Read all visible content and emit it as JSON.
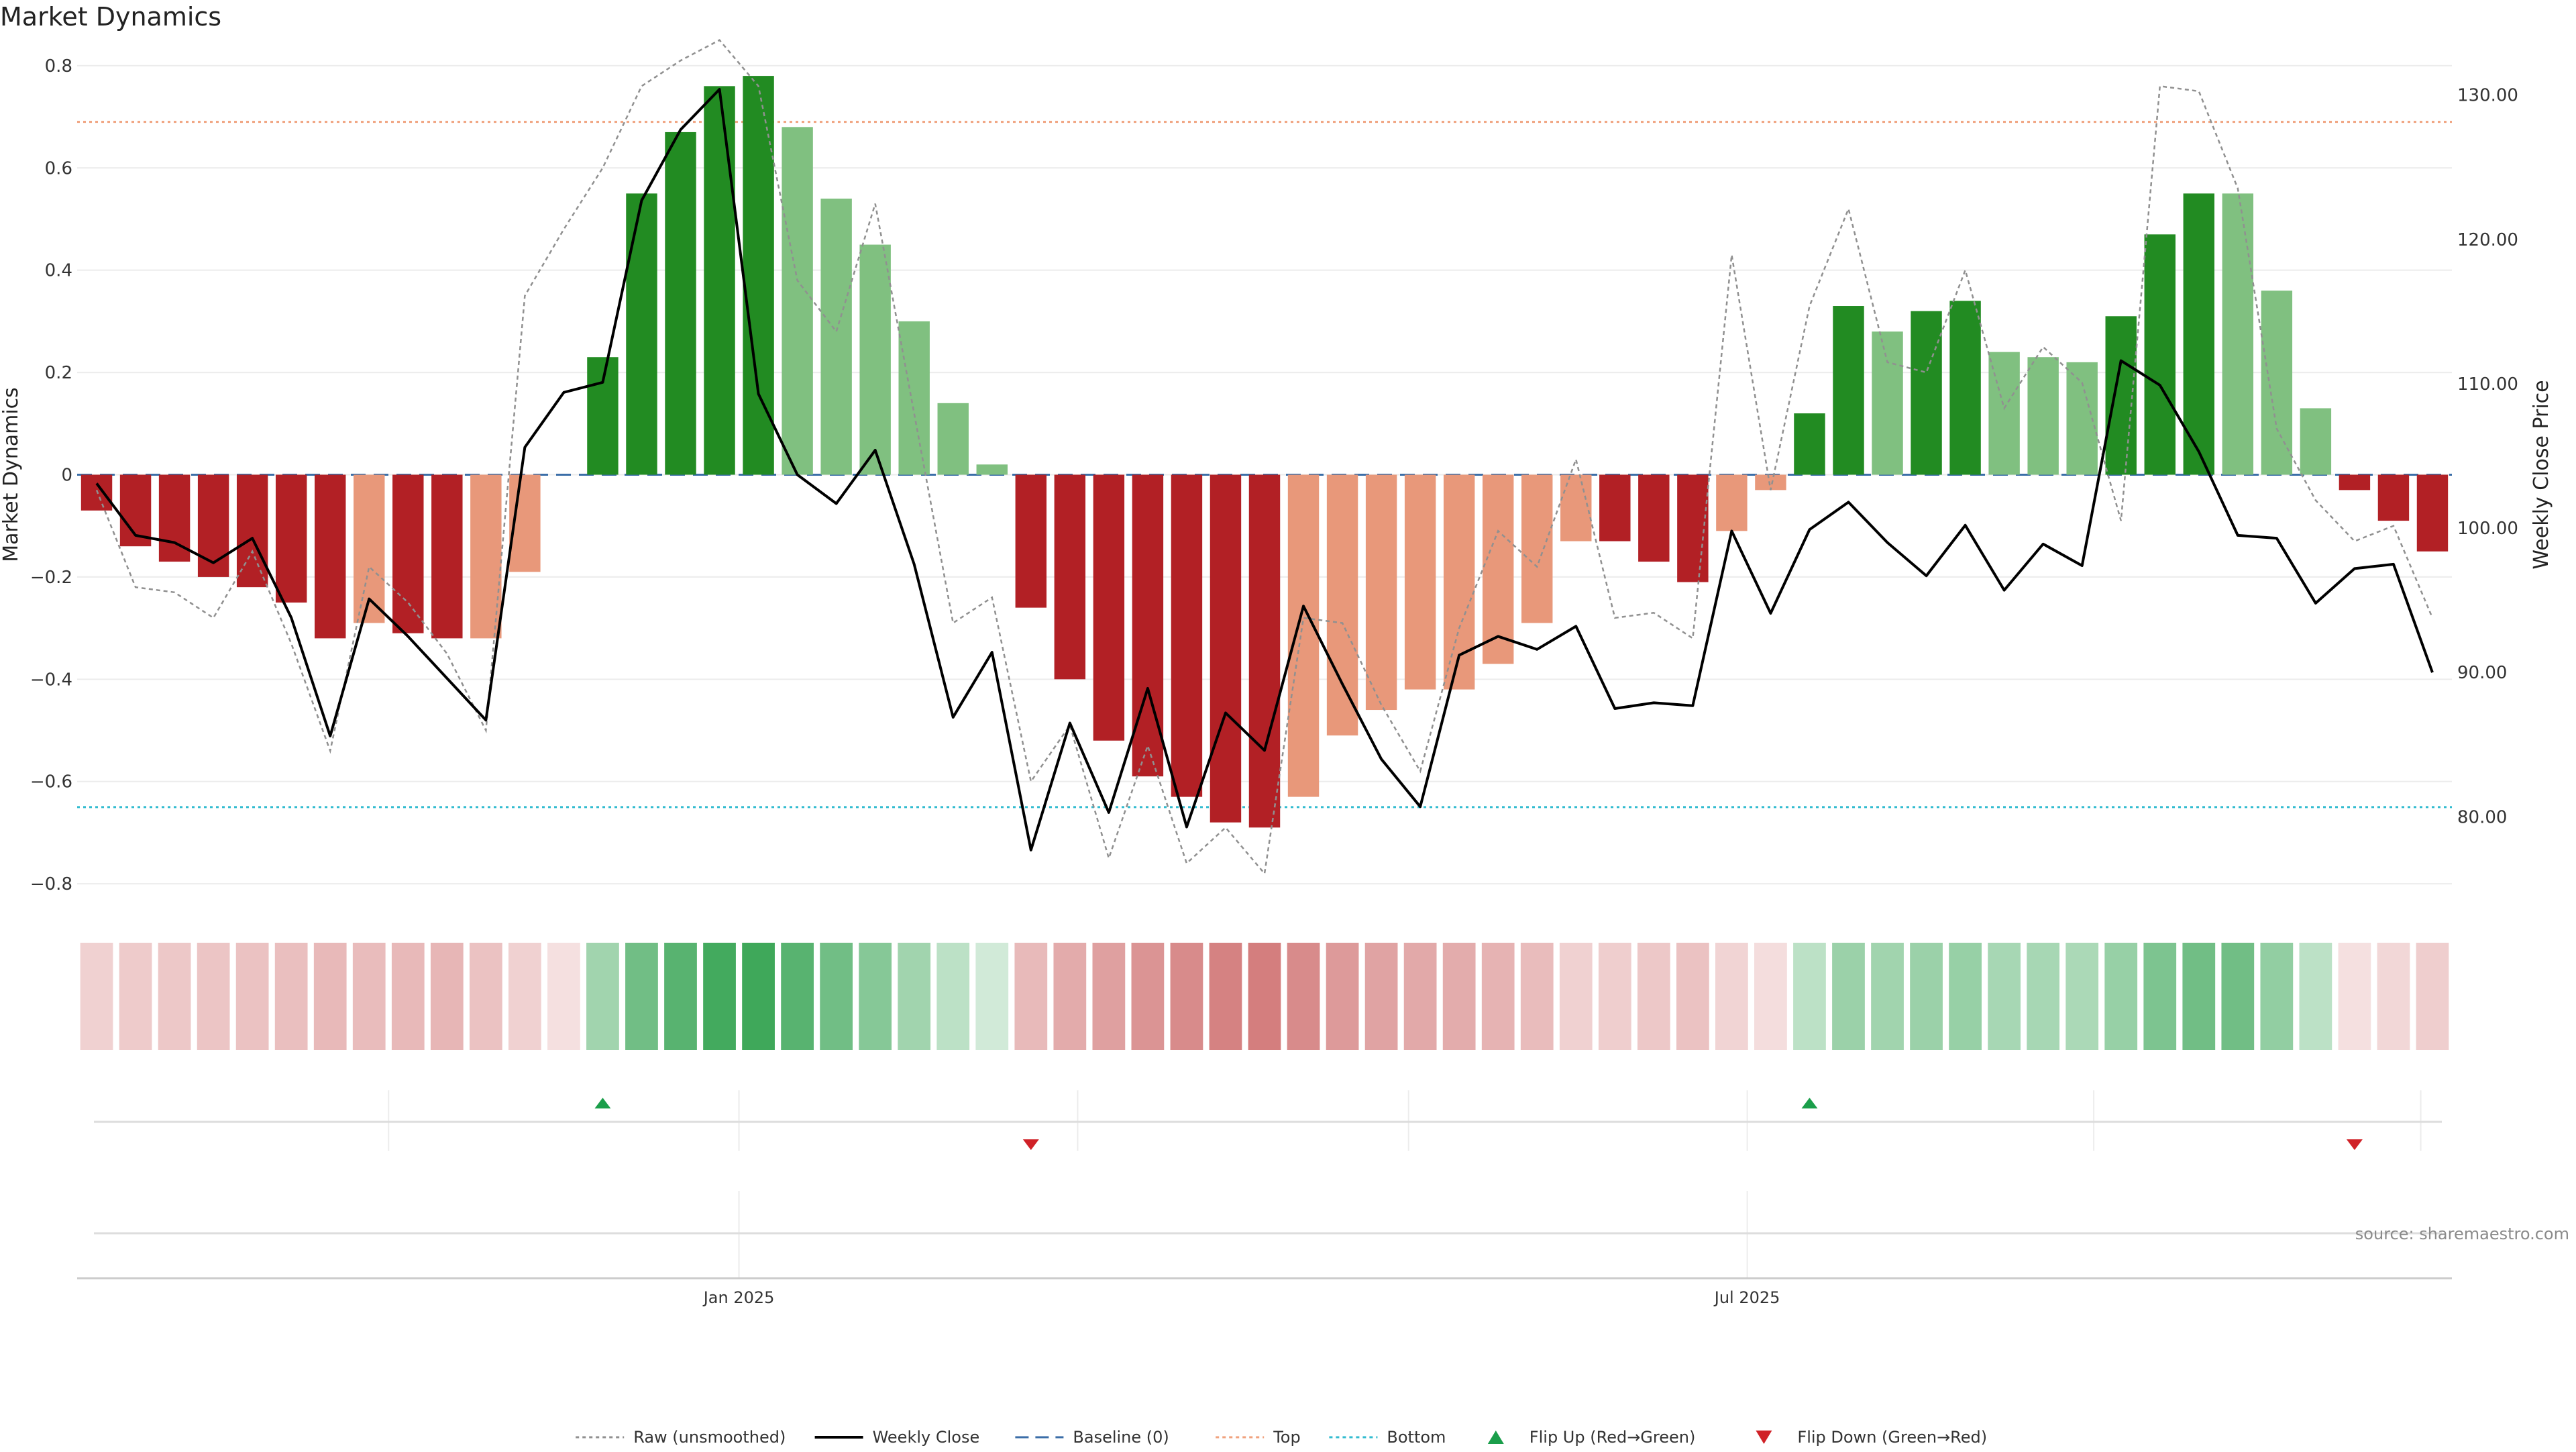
{
  "chart_data": {
    "type": "bar",
    "title": "Market Dynamics",
    "ylabel": "Market Dynamics",
    "y2label": "Weekly Close Price",
    "ylim": [
      -0.83,
      0.83
    ],
    "y2lim": [
      74.3,
      133.1
    ],
    "yticks": [
      0.8,
      0.6,
      0.4,
      0.2,
      0,
      -0.2,
      -0.4,
      -0.6,
      -0.8
    ],
    "ytick_labels": [
      "0.8",
      "0.6",
      "0.4",
      "0.2",
      "0",
      "−0.2",
      "−0.4",
      "−0.6",
      "−0.8"
    ],
    "y2ticks": [
      130,
      120,
      110,
      100,
      90,
      80
    ],
    "y2tick_labels": [
      "130.00",
      "120.00",
      "110.00",
      "100.00",
      "90.00",
      "80.00"
    ],
    "xticks": [
      {
        "index": 16.5,
        "label": "Jan 2025"
      },
      {
        "index": 42.4,
        "label": "Jul 2025"
      }
    ],
    "top_threshold": 0.69,
    "bottom_threshold": -0.65,
    "baseline": 0,
    "series": [
      {
        "name": "Market Dynamics",
        "kind": "bar",
        "values": [
          -0.07,
          -0.14,
          -0.17,
          -0.2,
          -0.22,
          -0.25,
          -0.32,
          -0.29,
          -0.31,
          -0.32,
          -0.32,
          -0.19,
          0,
          0.23,
          0.55,
          0.67,
          0.76,
          0.78,
          0.68,
          0.54,
          0.45,
          0.3,
          0.14,
          0.02,
          -0.26,
          -0.4,
          -0.52,
          -0.59,
          -0.63,
          -0.68,
          -0.69,
          -0.63,
          -0.51,
          -0.46,
          -0.42,
          -0.42,
          -0.37,
          -0.29,
          -0.13,
          -0.13,
          -0.17,
          -0.21,
          -0.11,
          -0.03,
          0.12,
          0.33,
          0.28,
          0.32,
          0.34,
          0.24,
          0.23,
          0.22,
          0.31,
          0.47,
          0.55,
          0.55,
          0.36,
          0.13,
          -0.03,
          -0.09,
          -0.15
        ],
        "colors": [
          "#b22025",
          "#b22025",
          "#b22025",
          "#b22025",
          "#b22025",
          "#b22025",
          "#b22025",
          "#e8987a",
          "#b22025",
          "#b22025",
          "#e8987a",
          "#e8987a",
          "#e8987a",
          "#228b22",
          "#228b22",
          "#228b22",
          "#228b22",
          "#228b22",
          "#80c080",
          "#80c080",
          "#80c080",
          "#80c080",
          "#80c080",
          "#80c080",
          "#b22025",
          "#b22025",
          "#b22025",
          "#b22025",
          "#b22025",
          "#b22025",
          "#b22025",
          "#e8987a",
          "#e8987a",
          "#e8987a",
          "#e8987a",
          "#e8987a",
          "#e8987a",
          "#e8987a",
          "#e8987a",
          "#b22025",
          "#b22025",
          "#b22025",
          "#e8987a",
          "#e8987a",
          "#228b22",
          "#228b22",
          "#80c080",
          "#228b22",
          "#228b22",
          "#80c080",
          "#80c080",
          "#80c080",
          "#228b22",
          "#228b22",
          "#228b22",
          "#80c080",
          "#80c080",
          "#80c080",
          "#b22025",
          "#b22025",
          "#b22025"
        ]
      },
      {
        "name": "Raw (unsmoothed)",
        "kind": "line",
        "color": "#909090",
        "values": [
          -0.03,
          -0.22,
          -0.23,
          -0.28,
          -0.15,
          -0.33,
          -0.54,
          -0.18,
          -0.25,
          -0.35,
          -0.5,
          0.35,
          0.48,
          0.6,
          0.76,
          0.81,
          0.85,
          0.76,
          0.38,
          0.28,
          0.53,
          0.12,
          -0.29,
          -0.24,
          -0.6,
          -0.49,
          -0.75,
          -0.53,
          -0.76,
          -0.69,
          -0.78,
          -0.28,
          -0.29,
          -0.45,
          -0.58,
          -0.3,
          -0.11,
          -0.18,
          0.03,
          -0.28,
          -0.27,
          -0.32,
          0.43,
          -0.03,
          0.33,
          0.52,
          0.22,
          0.2,
          0.4,
          0.13,
          0.25,
          0.18,
          -0.09,
          0.76,
          0.75,
          0.56,
          0.09,
          -0.05,
          -0.13,
          -0.1,
          -0.28
        ]
      },
      {
        "name": "Weekly Close",
        "kind": "line",
        "axis": "right",
        "color": "#000000",
        "values": [
          103.1,
          99.5,
          99.0,
          97.6,
          99.3,
          93.8,
          85.6,
          95.1,
          92.5,
          89.6,
          86.7,
          105.6,
          109.4,
          110.1,
          122.7,
          127.6,
          130.4,
          109.3,
          103.7,
          101.7,
          105.4,
          97.5,
          86.9,
          91.4,
          77.7,
          86.5,
          80.3,
          88.9,
          79.3,
          87.2,
          84.6,
          94.6,
          89.2,
          84.0,
          80.7,
          91.2,
          92.5,
          91.6,
          93.2,
          87.5,
          87.9,
          87.7,
          99.8,
          94.1,
          99.9,
          101.8,
          99.0,
          96.7,
          100.2,
          95.7,
          98.9,
          97.4,
          111.6,
          109.9,
          105.3,
          99.5,
          99.3,
          94.8,
          97.2,
          97.5,
          90.0
        ]
      }
    ],
    "heat_strip": [
      {
        "hue": "red",
        "level": 0.3
      },
      {
        "hue": "red",
        "level": 0.34
      },
      {
        "hue": "red",
        "level": 0.36
      },
      {
        "hue": "red",
        "level": 0.38
      },
      {
        "hue": "red",
        "level": 0.4
      },
      {
        "hue": "red",
        "level": 0.42
      },
      {
        "hue": "red",
        "level": 0.46
      },
      {
        "hue": "red",
        "level": 0.44
      },
      {
        "hue": "red",
        "level": 0.46
      },
      {
        "hue": "red",
        "level": 0.48
      },
      {
        "hue": "red",
        "level": 0.4
      },
      {
        "hue": "red",
        "level": 0.3
      },
      {
        "hue": "red",
        "level": 0.2
      },
      {
        "hue": "green",
        "level": 0.45
      },
      {
        "hue": "green",
        "level": 0.68
      },
      {
        "hue": "green",
        "level": 0.8
      },
      {
        "hue": "green",
        "level": 0.9
      },
      {
        "hue": "green",
        "level": 0.92
      },
      {
        "hue": "green",
        "level": 0.8
      },
      {
        "hue": "green",
        "level": 0.68
      },
      {
        "hue": "green",
        "level": 0.58
      },
      {
        "hue": "green",
        "level": 0.45
      },
      {
        "hue": "green",
        "level": 0.32
      },
      {
        "hue": "green",
        "level": 0.22
      },
      {
        "hue": "red",
        "level": 0.45
      },
      {
        "hue": "red",
        "level": 0.55
      },
      {
        "hue": "red",
        "level": 0.62
      },
      {
        "hue": "red",
        "level": 0.7
      },
      {
        "hue": "red",
        "level": 0.76
      },
      {
        "hue": "red",
        "level": 0.82
      },
      {
        "hue": "red",
        "level": 0.84
      },
      {
        "hue": "red",
        "level": 0.76
      },
      {
        "hue": "red",
        "level": 0.66
      },
      {
        "hue": "red",
        "level": 0.6
      },
      {
        "hue": "red",
        "level": 0.56
      },
      {
        "hue": "red",
        "level": 0.54
      },
      {
        "hue": "red",
        "level": 0.5
      },
      {
        "hue": "red",
        "level": 0.44
      },
      {
        "hue": "red",
        "level": 0.3
      },
      {
        "hue": "red",
        "level": 0.32
      },
      {
        "hue": "red",
        "level": 0.36
      },
      {
        "hue": "red",
        "level": 0.4
      },
      {
        "hue": "red",
        "level": 0.28
      },
      {
        "hue": "red",
        "level": 0.22
      },
      {
        "hue": "green",
        "level": 0.32
      },
      {
        "hue": "green",
        "level": 0.48
      },
      {
        "hue": "green",
        "level": 0.45
      },
      {
        "hue": "green",
        "level": 0.48
      },
      {
        "hue": "green",
        "level": 0.5
      },
      {
        "hue": "green",
        "level": 0.42
      },
      {
        "hue": "green",
        "level": 0.42
      },
      {
        "hue": "green",
        "level": 0.4
      },
      {
        "hue": "green",
        "level": 0.5
      },
      {
        "hue": "green",
        "level": 0.62
      },
      {
        "hue": "green",
        "level": 0.68
      },
      {
        "hue": "green",
        "level": 0.68
      },
      {
        "hue": "green",
        "level": 0.52
      },
      {
        "hue": "green",
        "level": 0.32
      },
      {
        "hue": "red",
        "level": 0.2
      },
      {
        "hue": "red",
        "level": 0.26
      },
      {
        "hue": "red",
        "level": 0.32
      }
    ],
    "flips": [
      {
        "direction": "up",
        "index": 13
      },
      {
        "direction": "down",
        "index": 24
      },
      {
        "direction": "up",
        "index": 44
      },
      {
        "direction": "down",
        "index": 58
      }
    ],
    "legend": [
      {
        "label": "Raw (unsmoothed)",
        "style": "dotted",
        "color": "#909090"
      },
      {
        "label": "Weekly Close",
        "style": "solid",
        "color": "#000000"
      },
      {
        "label": "Baseline (0)",
        "style": "dashed",
        "color": "#3b6ea8"
      },
      {
        "label": "Top",
        "style": "dotted",
        "color": "#f0a27e"
      },
      {
        "label": "Bottom",
        "style": "dotted",
        "color": "#33bcd0"
      },
      {
        "label": "Flip Up (Red→Green)",
        "style": "triangle-up",
        "color": "#1a9e4a"
      },
      {
        "label": "Flip Down (Green→Red)",
        "style": "triangle-down",
        "color": "#d02127"
      }
    ],
    "legend_position": "bottom-center",
    "source_note": "source: sharemaestro.com"
  }
}
